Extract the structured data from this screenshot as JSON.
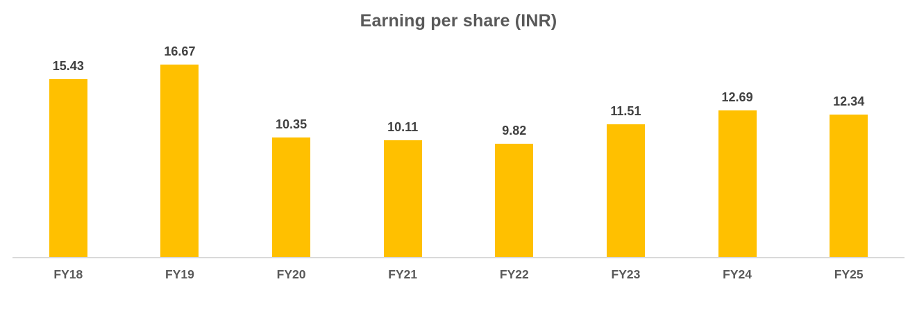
{
  "chart_data": {
    "type": "bar",
    "title": "Earning per share (INR)",
    "categories": [
      "FY18",
      "FY19",
      "FY20",
      "FY21",
      "FY22",
      "FY23",
      "FY24",
      "FY25"
    ],
    "values": [
      15.43,
      16.67,
      10.35,
      10.11,
      9.82,
      11.51,
      12.69,
      12.34
    ],
    "value_labels": [
      "15.43",
      "16.67",
      "10.35",
      "10.11",
      "9.82",
      "11.51",
      "12.69",
      "12.34"
    ],
    "xlabel": "",
    "ylabel": "",
    "ylim": [
      0,
      18
    ],
    "grid": false,
    "legend": false,
    "data_labels_position": "above-bars",
    "colors": {
      "bar": "#FFC000",
      "title_text": "#595959",
      "value_label_text": "#404040",
      "category_label_text": "#595959",
      "axis_line": "#D9D9D9",
      "background": "#FFFFFF"
    }
  }
}
